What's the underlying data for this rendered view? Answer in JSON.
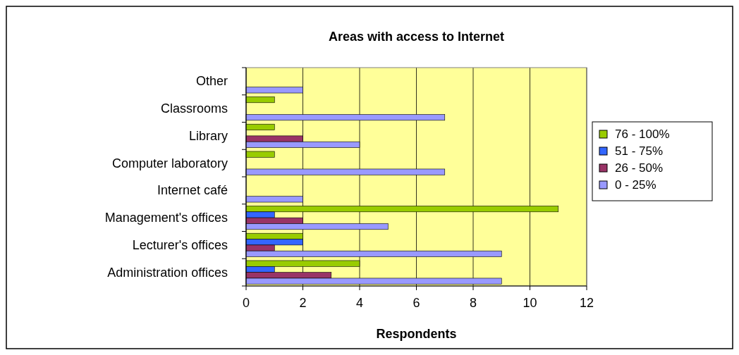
{
  "chart_data": {
    "type": "bar",
    "orientation": "horizontal",
    "title": "Areas with access to Internet",
    "xlabel": "Respondents",
    "categories": [
      "Other",
      "Classrooms",
      "Library",
      "Computer laboratory",
      "Internet café",
      "Management's offices",
      "Lecturer's offices",
      "Administration offices"
    ],
    "series": [
      {
        "name": "76 - 100%",
        "color": "#99cc00",
        "values": [
          0,
          1,
          1,
          1,
          0,
          11,
          2,
          4
        ]
      },
      {
        "name": "51 - 75%",
        "color": "#3366ff",
        "values": [
          0,
          0,
          0,
          0,
          0,
          1,
          2,
          1
        ]
      },
      {
        "name": "26 - 50%",
        "color": "#993366",
        "values": [
          0,
          0,
          2,
          0,
          0,
          2,
          1,
          3
        ]
      },
      {
        "name": "0 - 25%",
        "color": "#9999ff",
        "values": [
          2,
          7,
          4,
          7,
          2,
          5,
          9,
          9
        ]
      }
    ],
    "xlim": [
      0,
      12
    ],
    "xticks": [
      0,
      2,
      4,
      6,
      8,
      10,
      12
    ],
    "grid": "x",
    "legend": "right"
  }
}
